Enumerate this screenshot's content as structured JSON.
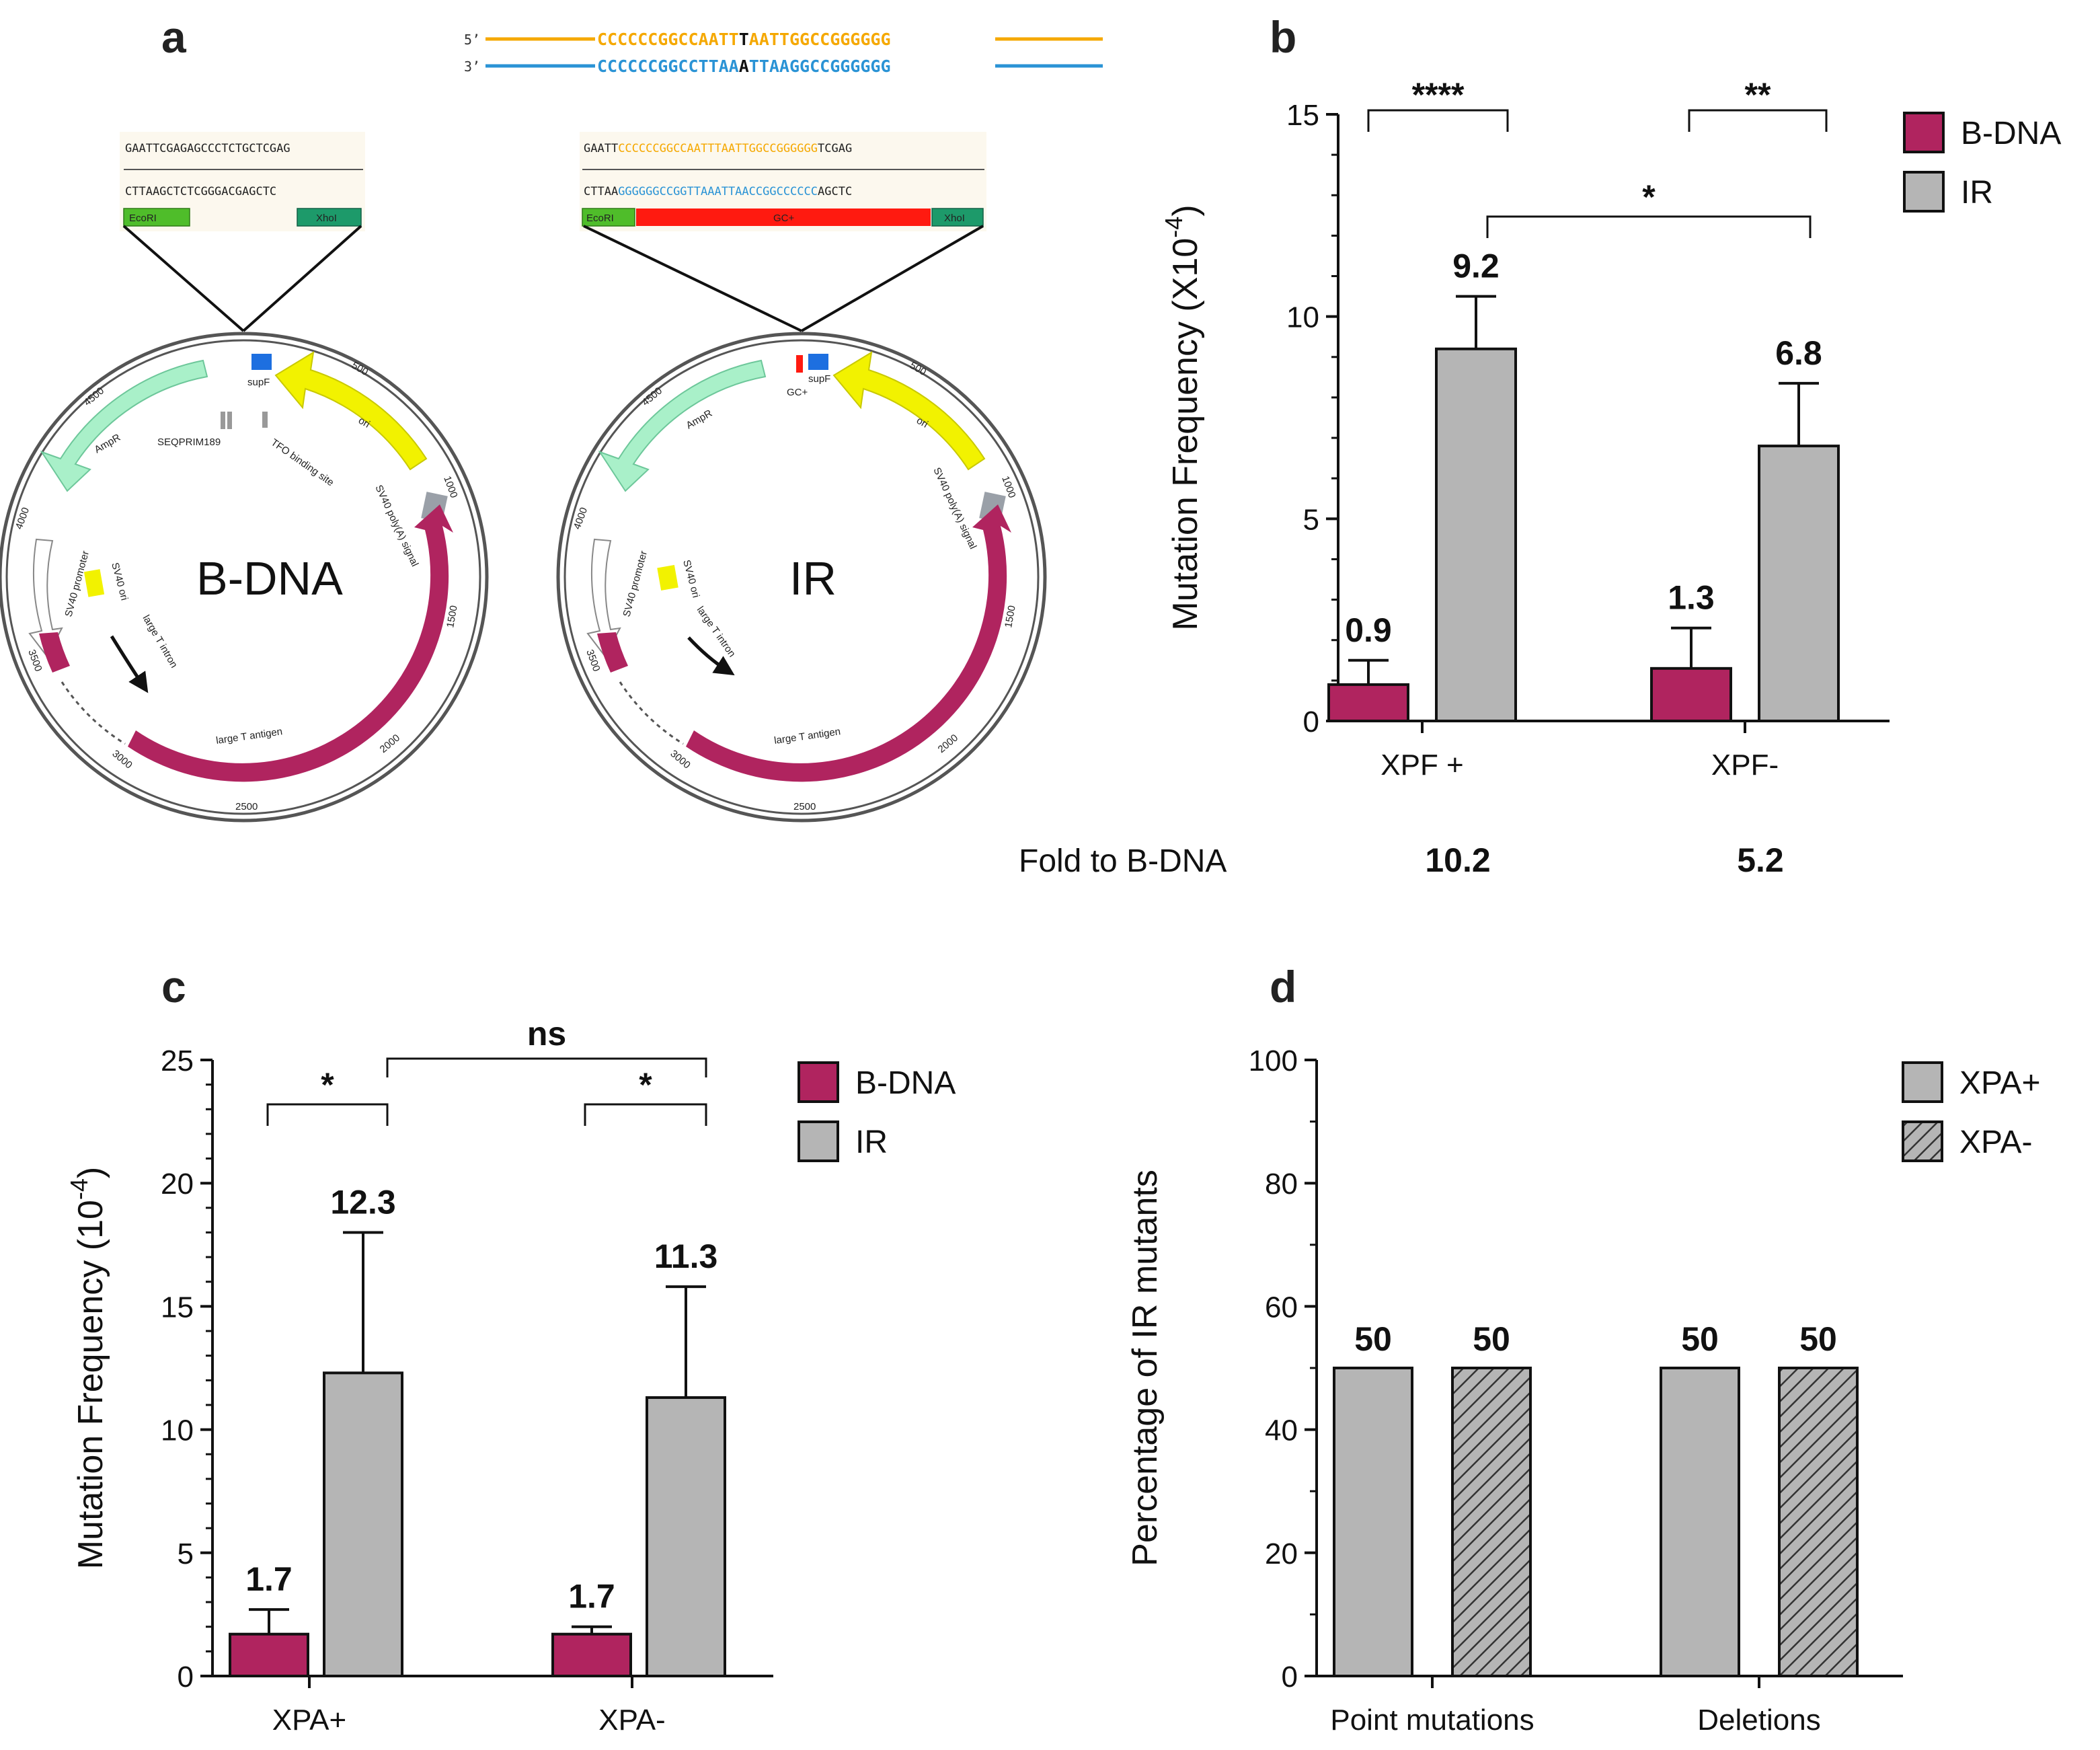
{
  "panels": {
    "a": {
      "letter": "a",
      "top_strand_prime": "5’",
      "top_strand_seq_left": "CCCCCCGGCCAATT",
      "top_strand_seq_mid": "T",
      "top_strand_seq_right": "AATTGGCCGGGGGG",
      "bottom_strand_prime": "3’",
      "bottom_strand_seq_left": "CCCCCCGGCCTTAA",
      "bottom_strand_seq_mid": "A",
      "bottom_strand_seq_right": "TTAAGGCCGGGGGG",
      "colors": {
        "top": "#f5a800",
        "bottom": "#2a93d5",
        "maroon": "#b0245f",
        "ampr": "#a9f0c9",
        "ori": "#f2f200"
      },
      "bdna_insert": {
        "top_seq": "GAATTCGAGAGCCCTCTGCTCGAG",
        "bottom_seq": "CTTAAGCTCTCGGGACGAGCTC",
        "site_left": "EcoRI",
        "site_right": "XhoI"
      },
      "ir_insert": {
        "top_seq_left": "GAATT",
        "top_seq_mid": "CCCCCCGGCCAATTTAATTGGCCGGGGGG",
        "top_seq_right": "TCGAG",
        "bottom_seq_left": "CTTAA",
        "bottom_seq_mid": "GGGGGGCCGGTTAAATTAACCGGCCCCCC",
        "bottom_seq_right": "AGCTC",
        "site_left": "EcoRI",
        "site_mid": "GC+",
        "site_right": "XhoI"
      },
      "bdna_map": {
        "center_label": "B-DNA",
        "labels": {
          "supf": "supF",
          "ampr": "AmpR",
          "ori": "ori",
          "seqprim": "SEQPRIM189",
          "tfo": "TFO binding site",
          "polya": "SV40 poly(A) signal",
          "promoter": "SV40 promoter",
          "sv40ori": "SV40 ori",
          "intron": "large T intron",
          "antigen": "large T antigen"
        },
        "ticks": [
          "500",
          "1000",
          "1500",
          "2000",
          "2500",
          "3000",
          "3500",
          "4000",
          "4500"
        ]
      },
      "ir_map": {
        "center_label": "IR",
        "labels": {
          "supf": "supF",
          "gcplus": "GC+",
          "ampr": "AmpR",
          "ori": "ori",
          "polya": "SV40 poly(A) signal",
          "promoter": "SV40 promoter",
          "sv40ori": "SV40 ori",
          "intron": "large T intron",
          "antigen": "large T antigen"
        },
        "ticks": [
          "500",
          "1000",
          "1500",
          "2000",
          "2500",
          "3000",
          "3500",
          "4000",
          "4500"
        ]
      }
    },
    "b": {
      "letter": "b"
    },
    "c": {
      "letter": "c"
    },
    "d": {
      "letter": "d"
    }
  },
  "chart_data": [
    {
      "id": "b",
      "type": "bar",
      "categories": [
        "XPF +",
        "XPF-"
      ],
      "series": [
        {
          "name": "B-DNA",
          "color": "#b0245f",
          "values": [
            0.9,
            1.3
          ],
          "errors": [
            0.6,
            1.0
          ],
          "labels": [
            "0.9",
            "1.3"
          ]
        },
        {
          "name": "IR",
          "color": "#b5b5b5",
          "values": [
            9.2,
            6.8
          ],
          "errors": [
            1.3,
            1.55
          ],
          "labels": [
            "9.2",
            "6.8"
          ]
        }
      ],
      "ylabel_main": "Mutation Frequency (X10",
      "ylabel_exp": "-4",
      "ylabel_close": ")",
      "ylim": [
        0,
        15
      ],
      "yticks": [
        "0",
        "5",
        "10",
        "15"
      ],
      "significance": [
        {
          "label": "****",
          "pair": "XPF + B-DNA vs IR"
        },
        {
          "label": "**",
          "pair": "XPF- B-DNA vs IR"
        },
        {
          "label": "*",
          "pair": "XPF + IR vs XPF- IR"
        }
      ],
      "fold_label": "Fold to B-DNA",
      "fold_values": [
        "10.2",
        "5.2"
      ],
      "fold_color": "#ff2a10"
    },
    {
      "id": "c",
      "type": "bar",
      "categories": [
        "XPA+",
        "XPA-"
      ],
      "series": [
        {
          "name": "B-DNA",
          "color": "#b0245f",
          "values": [
            1.7,
            1.7
          ],
          "errors": [
            1.0,
            0.3
          ],
          "labels": [
            "1.7",
            "1.7"
          ]
        },
        {
          "name": "IR",
          "color": "#b5b5b5",
          "values": [
            12.3,
            11.3
          ],
          "errors": [
            5.7,
            4.5
          ],
          "labels": [
            "12.3",
            "11.3"
          ]
        }
      ],
      "ylabel_main": "Mutation Frequency (10",
      "ylabel_exp": "-4",
      "ylabel_close": ")",
      "ylim": [
        0,
        25
      ],
      "yticks": [
        "0",
        "5",
        "10",
        "15",
        "20",
        "25"
      ],
      "significance": [
        {
          "label": "*",
          "pair": "XPA+ B-DNA vs IR"
        },
        {
          "label": "*",
          "pair": "XPA- B-DNA vs IR"
        },
        {
          "label": "ns",
          "pair": "XPA+ IR vs XPA- IR"
        }
      ]
    },
    {
      "id": "d",
      "type": "bar",
      "categories": [
        "Point mutations",
        "Deletions"
      ],
      "series": [
        {
          "name": "XPA+",
          "color": "#b5b5b5",
          "pattern": "solid",
          "values": [
            50,
            50
          ],
          "labels": [
            "50",
            "50"
          ]
        },
        {
          "name": "XPA-",
          "color": "#b5b5b5",
          "pattern": "hatched",
          "values": [
            50,
            50
          ],
          "labels": [
            "50",
            "50"
          ]
        }
      ],
      "ylabel": "Percentage of IR mutants",
      "ylim": [
        0,
        100
      ],
      "yticks": [
        "0",
        "20",
        "40",
        "60",
        "80",
        "100"
      ]
    }
  ]
}
